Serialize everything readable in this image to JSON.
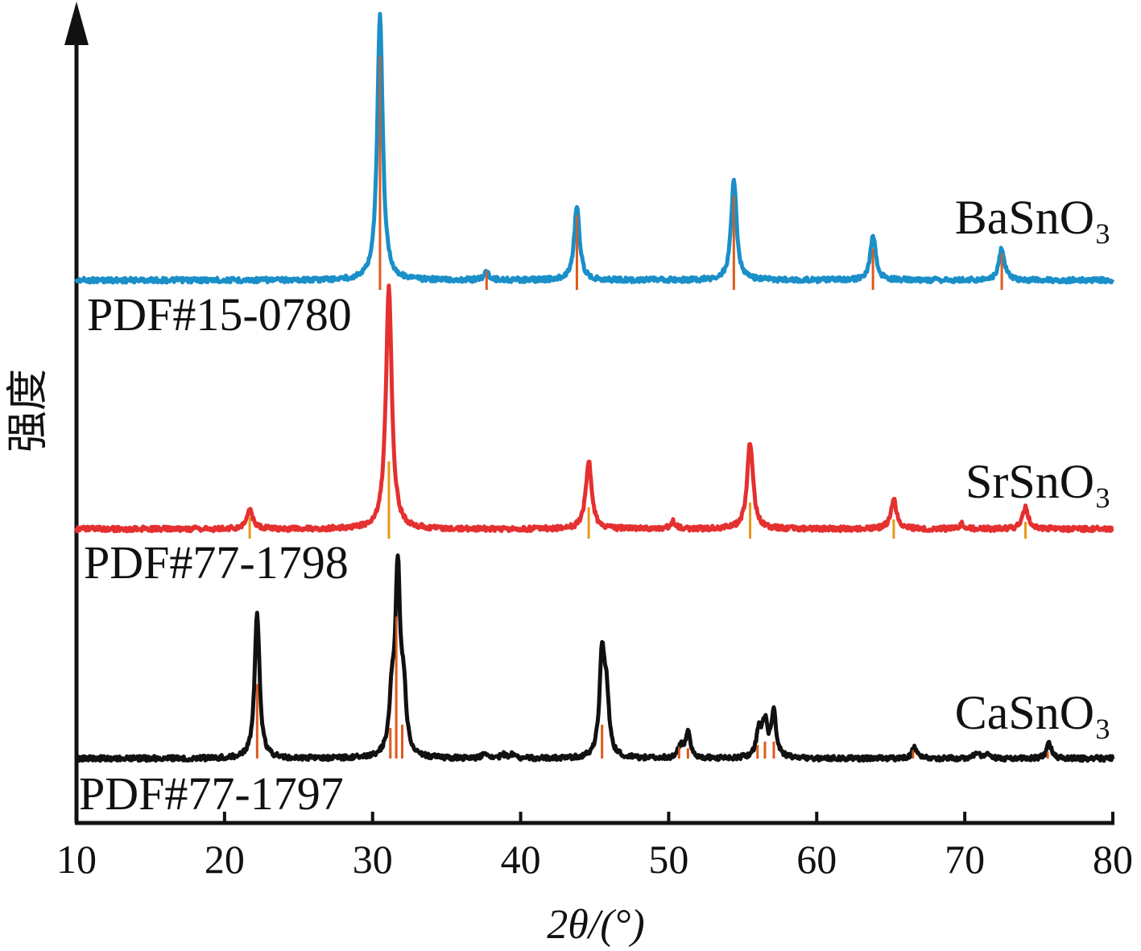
{
  "chart_data": {
    "type": "line",
    "xlabel": "2θ/(°)",
    "ylabel": "强度",
    "xlim": [
      10,
      80
    ],
    "xticks": [
      10,
      20,
      30,
      40,
      50,
      60,
      70,
      80
    ],
    "grid": false,
    "legend": "none",
    "series": [
      {
        "name": "BaSnO₃",
        "reference": "PDF#15-0780",
        "color": "#1a8fc8",
        "ref_color": "#e05a1a",
        "peaks": [
          {
            "x": 30.5,
            "h": 1.0
          },
          {
            "x": 37.7,
            "h": 0.03
          },
          {
            "x": 43.8,
            "h": 0.28
          },
          {
            "x": 54.4,
            "h": 0.38
          },
          {
            "x": 63.8,
            "h": 0.17
          },
          {
            "x": 72.5,
            "h": 0.12
          }
        ],
        "refs": [
          {
            "x": 30.5,
            "h": 0.93
          },
          {
            "x": 37.7,
            "h": 0.04
          },
          {
            "x": 43.8,
            "h": 0.27
          },
          {
            "x": 54.4,
            "h": 0.35
          },
          {
            "x": 63.8,
            "h": 0.13
          },
          {
            "x": 72.5,
            "h": 0.11
          }
        ]
      },
      {
        "name": "SrSnO₃",
        "reference": "PDF#77-1798",
        "color": "#e53030",
        "ref_color": "#e89a1a",
        "peaks": [
          {
            "x": 21.7,
            "h": 0.08
          },
          {
            "x": 31.1,
            "h": 1.0
          },
          {
            "x": 44.6,
            "h": 0.28
          },
          {
            "x": 50.3,
            "h": 0.03
          },
          {
            "x": 55.5,
            "h": 0.36
          },
          {
            "x": 65.2,
            "h": 0.12
          },
          {
            "x": 69.8,
            "h": 0.02
          },
          {
            "x": 74.1,
            "h": 0.09
          }
        ],
        "refs": [
          {
            "x": 21.7,
            "h": 0.05
          },
          {
            "x": 31.1,
            "h": 0.28
          },
          {
            "x": 44.6,
            "h": 0.09
          },
          {
            "x": 55.5,
            "h": 0.11
          },
          {
            "x": 65.2,
            "h": 0.04
          },
          {
            "x": 74.1,
            "h": 0.03
          }
        ]
      },
      {
        "name": "CaSnO₃",
        "reference": "PDF#77-1797",
        "color": "#111111",
        "ref_color": "#e05a1a",
        "peaks": [
          {
            "x": 22.2,
            "h": 0.78
          },
          {
            "x": 31.3,
            "h": 0.28
          },
          {
            "x": 31.7,
            "h": 0.98
          },
          {
            "x": 32.1,
            "h": 0.3
          },
          {
            "x": 37.6,
            "h": 0.03
          },
          {
            "x": 38.8,
            "h": 0.02
          },
          {
            "x": 39.4,
            "h": 0.02
          },
          {
            "x": 45.5,
            "h": 0.54
          },
          {
            "x": 45.8,
            "h": 0.3
          },
          {
            "x": 50.8,
            "h": 0.06
          },
          {
            "x": 51.3,
            "h": 0.14
          },
          {
            "x": 56.1,
            "h": 0.15
          },
          {
            "x": 56.5,
            "h": 0.18
          },
          {
            "x": 57.1,
            "h": 0.24
          },
          {
            "x": 66.6,
            "h": 0.06
          },
          {
            "x": 70.8,
            "h": 0.03
          },
          {
            "x": 71.5,
            "h": 0.02
          },
          {
            "x": 75.7,
            "h": 0.08
          }
        ],
        "refs": [
          {
            "x": 22.2,
            "h": 0.44
          },
          {
            "x": 31.2,
            "h": 0.18
          },
          {
            "x": 31.6,
            "h": 0.84
          },
          {
            "x": 32.0,
            "h": 0.2
          },
          {
            "x": 45.5,
            "h": 0.2
          },
          {
            "x": 50.7,
            "h": 0.07
          },
          {
            "x": 51.3,
            "h": 0.06
          },
          {
            "x": 56.0,
            "h": 0.08
          },
          {
            "x": 56.5,
            "h": 0.1
          },
          {
            "x": 57.1,
            "h": 0.1
          },
          {
            "x": 66.5,
            "h": 0.05
          },
          {
            "x": 75.6,
            "h": 0.04
          }
        ]
      }
    ]
  }
}
